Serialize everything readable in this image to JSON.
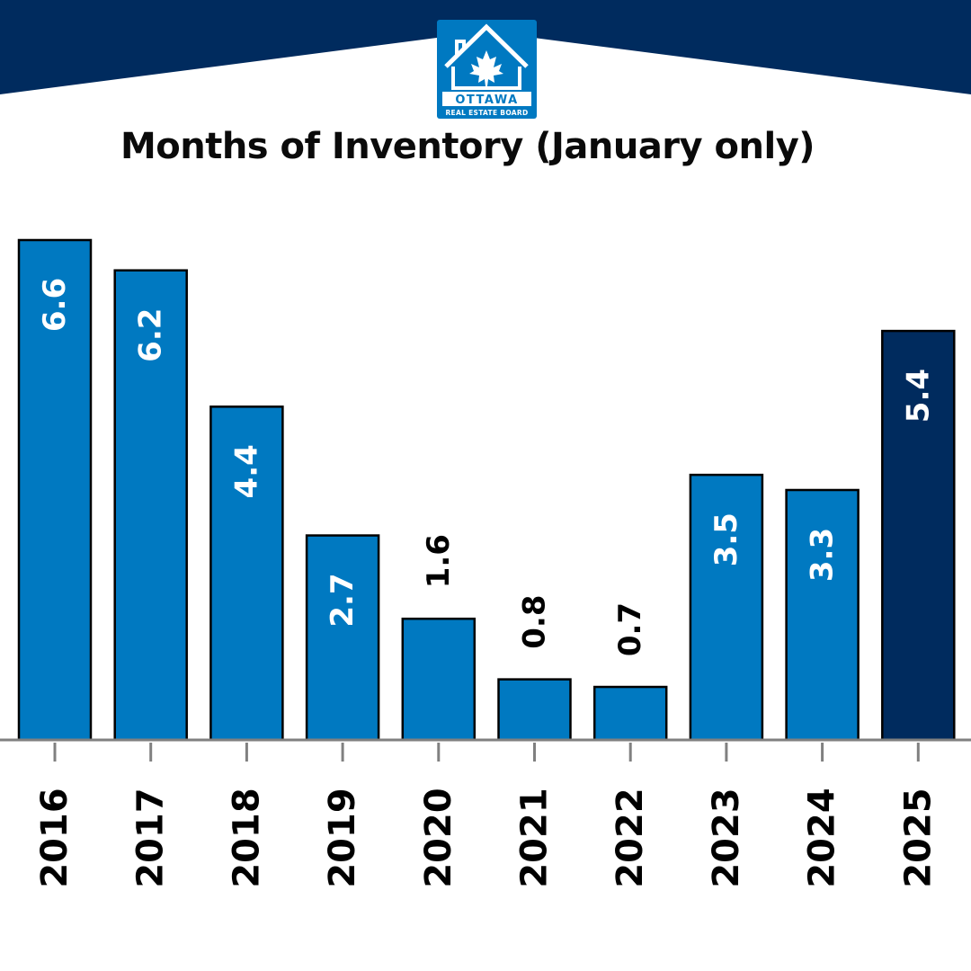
{
  "brand": {
    "logo_line1": "OTTAWA",
    "logo_line2": "REAL ESTATE BOARD",
    "header_color": "#002b5e",
    "logo_color": "#0079c1"
  },
  "colors": {
    "bar_default": "#0079c1",
    "bar_highlight": "#002b5e",
    "bar_outline": "#000000",
    "axis": "#808080"
  },
  "chart_data": {
    "type": "bar",
    "title": "Months of Inventory (January only)",
    "xlabel": "",
    "ylabel": "",
    "categories": [
      "2016",
      "2017",
      "2018",
      "2019",
      "2020",
      "2021",
      "2022",
      "2023",
      "2024",
      "2025"
    ],
    "values": [
      6.6,
      6.2,
      4.4,
      2.7,
      1.6,
      0.8,
      0.7,
      3.5,
      3.3,
      5.4
    ],
    "data_labels": [
      "6.6",
      "6.2",
      "4.4",
      "2.7",
      "1.6",
      "0.8",
      "0.7",
      "3.5",
      "3.3",
      "5.4"
    ],
    "highlight_category": "2025",
    "ylim": [
      0,
      6.6
    ],
    "grid": false,
    "legend": "none"
  }
}
